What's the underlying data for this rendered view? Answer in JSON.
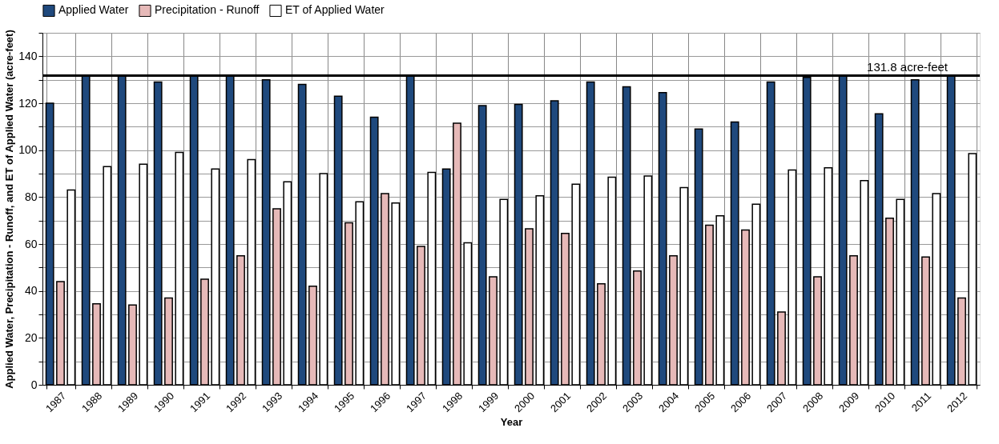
{
  "chart_data": {
    "type": "bar",
    "xlabel": "Year",
    "ylabel": "Applied Water, Precipitation - Runoff, and ET of Applied Water (acre-feet)",
    "categories": [
      "1987",
      "1988",
      "1989",
      "1990",
      "1991",
      "1992",
      "1993",
      "1994",
      "1995",
      "1996",
      "1997",
      "1998",
      "1999",
      "2000",
      "2001",
      "2002",
      "2003",
      "2004",
      "2005",
      "2006",
      "2007",
      "2008",
      "2009",
      "2010",
      "2011",
      "2012"
    ],
    "series": [
      {
        "name": "Applied Water",
        "color": "#1f497d",
        "values": [
          120,
          131.8,
          131.8,
          129,
          131.8,
          131.8,
          130,
          128,
          123,
          114,
          131.8,
          92,
          119,
          119.5,
          121,
          129,
          127,
          124.5,
          109,
          112,
          129,
          131,
          131.8,
          115.5,
          130,
          131.8
        ]
      },
      {
        "name": "Precipitation - Runoff",
        "color": "#e6b9b8",
        "values": [
          44,
          34.5,
          34,
          37,
          45,
          55,
          75,
          42,
          69,
          81.5,
          59,
          111.5,
          46,
          66.5,
          64.5,
          43,
          48.5,
          55,
          68,
          66,
          31,
          46,
          55,
          71,
          54.5,
          37
        ]
      },
      {
        "name": "ET of Applied Water",
        "color": "#ffffff",
        "values": [
          83,
          93,
          94,
          99,
          92,
          96,
          86.5,
          90,
          78,
          77.5,
          90.5,
          60.5,
          79,
          80.5,
          85.5,
          88.5,
          89,
          84,
          72,
          77,
          91.5,
          92.5,
          87,
          79,
          81.5,
          98.5
        ]
      }
    ],
    "ylim": [
      0,
      150
    ],
    "yticks": [
      0,
      {
        "value": 10,
        "label": null
      },
      20,
      {
        "value": 30,
        "label": null
      },
      40,
      {
        "value": 50,
        "label": null
      },
      60,
      {
        "value": 70,
        "label": null
      },
      80,
      {
        "value": 90,
        "label": null
      },
      100,
      {
        "value": 110,
        "label": null
      },
      120,
      {
        "value": 130,
        "label": null
      },
      140,
      {
        "value": 150,
        "label": null
      }
    ],
    "ref_lines": [
      {
        "axis": "y",
        "value": 131.8,
        "label": "131.8 acre-feet",
        "color": "#000000"
      }
    ],
    "grid": true,
    "legend": "top"
  }
}
